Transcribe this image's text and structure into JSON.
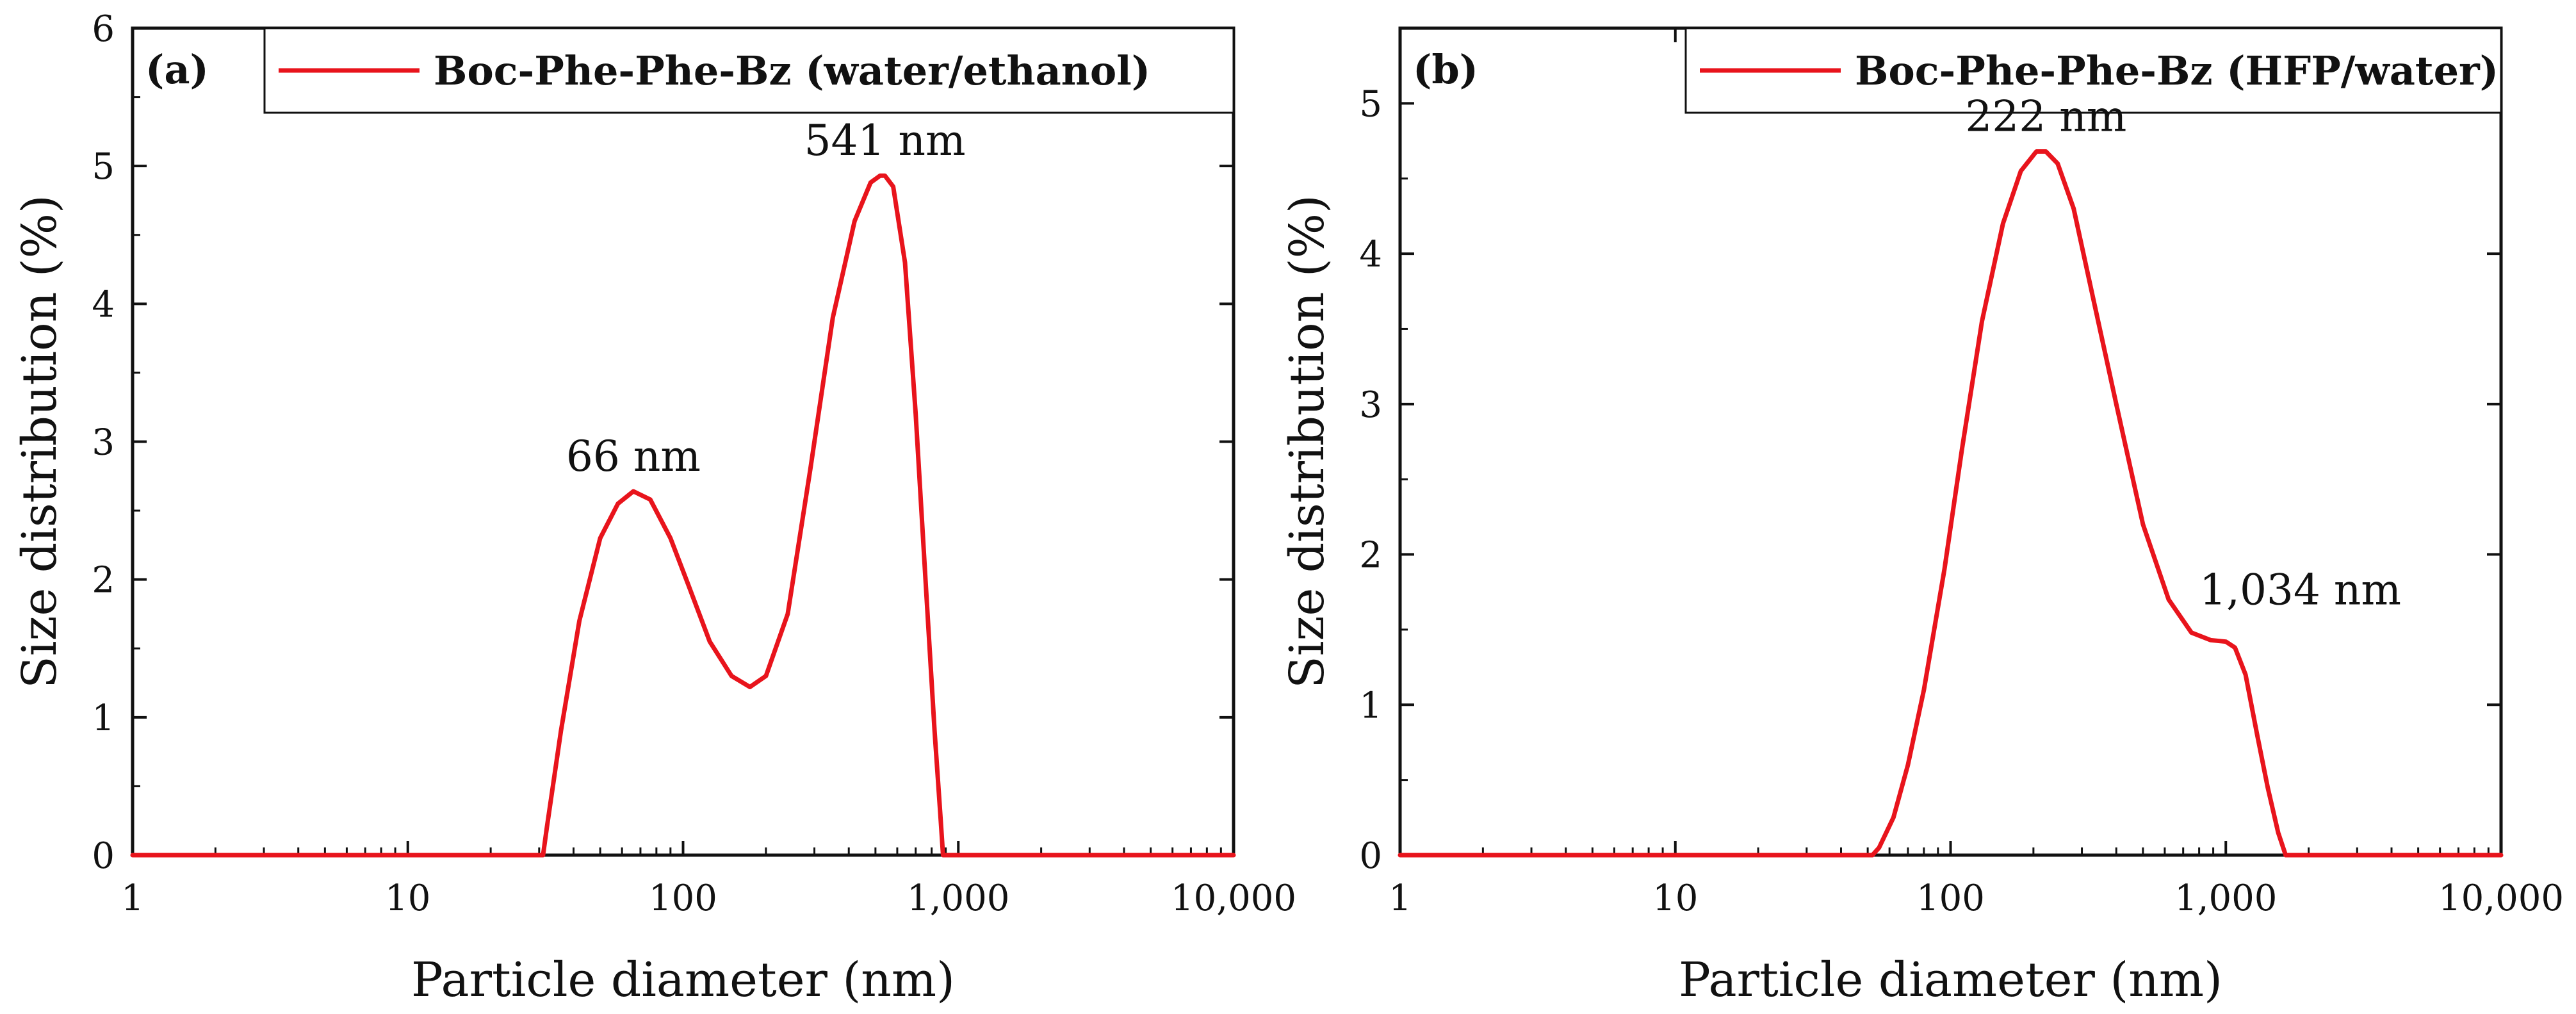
{
  "chart_data": [
    {
      "type": "line",
      "panel_label": "(a)",
      "xscale": "log",
      "xlim": [
        1,
        10000
      ],
      "ylim": [
        0,
        6
      ],
      "xticks": [
        "1",
        "10",
        "100",
        "1,000",
        "10,000"
      ],
      "yticks": [
        "0",
        "1",
        "2",
        "3",
        "4",
        "5",
        "6"
      ],
      "xlabel": "Particle diameter (nm)",
      "ylabel": "Size distribution (%)",
      "legend_position": "top-right",
      "color": "#e8141c",
      "series": [
        {
          "name": "Boc-Phe-Phe-Bz (water/ethanol)",
          "x": [
            1,
            31,
            32,
            36,
            42,
            50,
            58,
            66,
            76,
            90,
            105,
            125,
            150,
            175,
            200,
            240,
            290,
            350,
            420,
            480,
            520,
            541,
            580,
            640,
            700,
            760,
            820,
            860,
            880,
            10000
          ],
          "y": [
            0,
            0,
            0.2,
            0.9,
            1.7,
            2.3,
            2.55,
            2.64,
            2.58,
            2.3,
            1.95,
            1.55,
            1.3,
            1.22,
            1.3,
            1.75,
            2.8,
            3.9,
            4.6,
            4.88,
            4.93,
            4.93,
            4.85,
            4.3,
            3.2,
            2.0,
            0.9,
            0.3,
            0,
            0
          ]
        }
      ],
      "annotations": [
        {
          "text": "66 nm",
          "x": 66,
          "y": 2.64
        },
        {
          "text": "541 nm",
          "x": 541,
          "y": 4.93
        }
      ]
    },
    {
      "type": "line",
      "panel_label": "(b)",
      "xscale": "log",
      "xlim": [
        1,
        10000
      ],
      "ylim": [
        0,
        5.5
      ],
      "xticks": [
        "1",
        "10",
        "100",
        "1,000",
        "10,000"
      ],
      "yticks": [
        "0",
        "1",
        "2",
        "3",
        "4",
        "5"
      ],
      "xlabel": "Particle diameter (nm)",
      "ylabel": "Size distribution (%)",
      "legend_position": "top-right",
      "color": "#e8141c",
      "series": [
        {
          "name": "Boc-Phe-Phe-Bz (HFP/water)",
          "x": [
            1,
            52,
            55,
            62,
            70,
            80,
            95,
            110,
            130,
            155,
            180,
            205,
            222,
            245,
            280,
            330,
            400,
            500,
            620,
            750,
            880,
            1000,
            1080,
            1180,
            1300,
            1420,
            1550,
            1650,
            10000
          ],
          "y": [
            0,
            0,
            0.05,
            0.25,
            0.6,
            1.1,
            1.9,
            2.7,
            3.55,
            4.2,
            4.55,
            4.68,
            4.68,
            4.6,
            4.3,
            3.7,
            3.0,
            2.2,
            1.7,
            1.48,
            1.43,
            1.42,
            1.38,
            1.2,
            0.8,
            0.45,
            0.15,
            0,
            0
          ]
        }
      ],
      "annotations": [
        {
          "text": "222 nm",
          "x": 222,
          "y": 4.68
        },
        {
          "text": "1,034 nm",
          "x": 1034,
          "y": 1.42
        }
      ]
    }
  ]
}
